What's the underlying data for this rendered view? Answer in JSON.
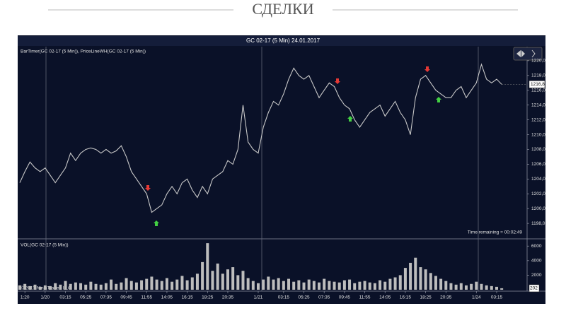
{
  "header": {
    "title": "СДЕЛКИ"
  },
  "chart_data": [
    {
      "type": "line",
      "title": "GC 02-17 (5 Min)  24.01.2017",
      "subtitle": "BarTimer(GC 02-17 (5 Min)), PriceLineWH(GC 02-17 (5 Min))",
      "annotation": "Time remaining = 00:02:49",
      "color": "#c8c8c8",
      "categories": [
        null,
        "1:20",
        null,
        null,
        null,
        "1/20",
        null,
        null,
        null,
        "03:15",
        null,
        null,
        null,
        "05:25",
        null,
        null,
        null,
        "07:35",
        null,
        null,
        null,
        "09:45",
        null,
        null,
        null,
        "11:55",
        null,
        null,
        null,
        "14:05",
        null,
        null,
        null,
        "16:15",
        null,
        null,
        null,
        "18:25",
        null,
        null,
        null,
        "20:35",
        null,
        null,
        null,
        null,
        null,
        "1/21",
        null,
        null,
        null,
        null,
        "03:15",
        null,
        null,
        null,
        "05:25",
        null,
        null,
        null,
        "07:35",
        null,
        null,
        null,
        "09:45",
        null,
        null,
        null,
        "11:55",
        null,
        null,
        null,
        "14:05",
        null,
        null,
        null,
        "16:15",
        null,
        null,
        null,
        "18:25",
        null,
        null,
        null,
        "20:35",
        null,
        null,
        null,
        null,
        null,
        "1/24",
        null,
        null,
        null,
        "03:15",
        null
      ],
      "values": [
        1203.5,
        1205,
        1206.3,
        1205.5,
        1205,
        1205.5,
        1204.5,
        1203.5,
        1204.5,
        1205.5,
        1207.5,
        1206.5,
        1207.5,
        1208,
        1208.2,
        1208,
        1207.5,
        1208,
        1207.5,
        1207.8,
        1208.5,
        1207,
        1205,
        1204,
        1203,
        1202,
        1199.5,
        1200,
        1200.5,
        1202,
        1203,
        1202,
        1203.5,
        1204,
        1202.5,
        1201.5,
        1203,
        1202,
        1204,
        1204.5,
        1205,
        1206.5,
        1206,
        1208,
        1214,
        1209,
        1208,
        1207.5,
        1211,
        1213,
        1214.5,
        1214,
        1215.5,
        1217.5,
        1219,
        1218,
        1217.5,
        1218,
        1216.5,
        1215,
        1216,
        1217,
        1216.5,
        1215,
        1214,
        1213.5,
        1212,
        1211,
        1212,
        1213,
        1213.5,
        1214,
        1212.5,
        1213.5,
        1214.5,
        1213,
        1212,
        1210,
        1215,
        1217.5,
        1218,
        1217,
        1216,
        1215.5,
        1215,
        1215,
        1216,
        1216.5,
        1215,
        1216,
        1217,
        1219.5,
        1217.5,
        1217,
        1217.5,
        1216.8
      ],
      "value_labels": [
        null,
        null,
        null,
        null,
        null,
        null,
        null,
        null,
        null,
        null,
        null,
        null,
        null,
        null,
        null,
        null,
        null,
        null,
        null,
        null,
        null,
        null,
        null,
        null,
        null,
        null,
        null,
        null,
        null,
        null,
        null,
        null,
        null,
        null,
        null,
        null,
        null,
        null,
        null,
        null,
        null,
        null,
        null,
        null,
        null,
        null,
        null,
        null,
        null,
        null,
        null,
        null,
        null,
        null,
        null,
        null,
        null,
        null,
        null,
        null,
        null,
        null,
        null,
        null,
        null,
        null,
        null,
        null,
        null,
        null,
        null,
        null,
        null,
        null,
        null,
        null,
        null,
        null,
        null,
        null,
        null,
        null,
        null,
        null,
        null,
        null,
        null,
        null,
        null,
        null,
        null,
        null,
        null,
        null,
        null,
        "1216,8"
      ],
      "ylim": [
        1196.1,
        1221.9
      ],
      "yticks": [
        {
          "value": 1198,
          "label": "1198,0"
        },
        {
          "value": 1200,
          "label": "1200,0"
        },
        {
          "value": 1202,
          "label": "1202,0"
        },
        {
          "value": 1204,
          "label": "1204,0"
        },
        {
          "value": 1206,
          "label": "1206,0"
        },
        {
          "value": 1208,
          "label": "1208,0"
        },
        {
          "value": 1210,
          "label": "1210,0"
        },
        {
          "value": 1212,
          "label": "1212,0"
        },
        {
          "value": 1214,
          "label": "1214,0"
        },
        {
          "value": 1216,
          "label": "1216,0"
        },
        {
          "value": 1218,
          "label": "1218,0"
        },
        {
          "value": 1220,
          "label": "1220,0"
        }
      ]
    },
    {
      "type": "bar",
      "subtitle": "VOL(GC 02-17 (5 Min))",
      "annotation": "© 2017 NinjaTrader, LLC",
      "color": "#bdbdbd",
      "values": [
        600,
        800,
        500,
        700,
        400,
        600,
        500,
        900,
        700,
        1200,
        800,
        1000,
        900,
        700,
        1100,
        800,
        700,
        900,
        1400,
        800,
        1000,
        1600,
        1200,
        1000,
        1300,
        1500,
        1800,
        1400,
        1200,
        1600,
        1100,
        1400,
        1900,
        1300,
        1700,
        2200,
        3800,
        6400,
        2600,
        3600,
        2200,
        2800,
        3100,
        2000,
        2600,
        1600,
        1200,
        900,
        1400,
        1800,
        1400,
        1600,
        1200,
        1500,
        1100,
        1300,
        1000,
        1400,
        1200,
        1000,
        1500,
        1200,
        1100,
        1000,
        1300,
        1400,
        900,
        1100,
        1200,
        1000,
        900,
        1300,
        1100,
        1500,
        1700,
        2000,
        3000,
        3700,
        4400,
        3100,
        2800,
        2300,
        1900,
        1500,
        1200,
        900,
        700,
        900,
        600,
        800,
        1100,
        800,
        600,
        500,
        400,
        202
      ],
      "ylim": [
        0,
        6800
      ],
      "yticks": [
        2000,
        4000,
        6000
      ]
    }
  ]
}
